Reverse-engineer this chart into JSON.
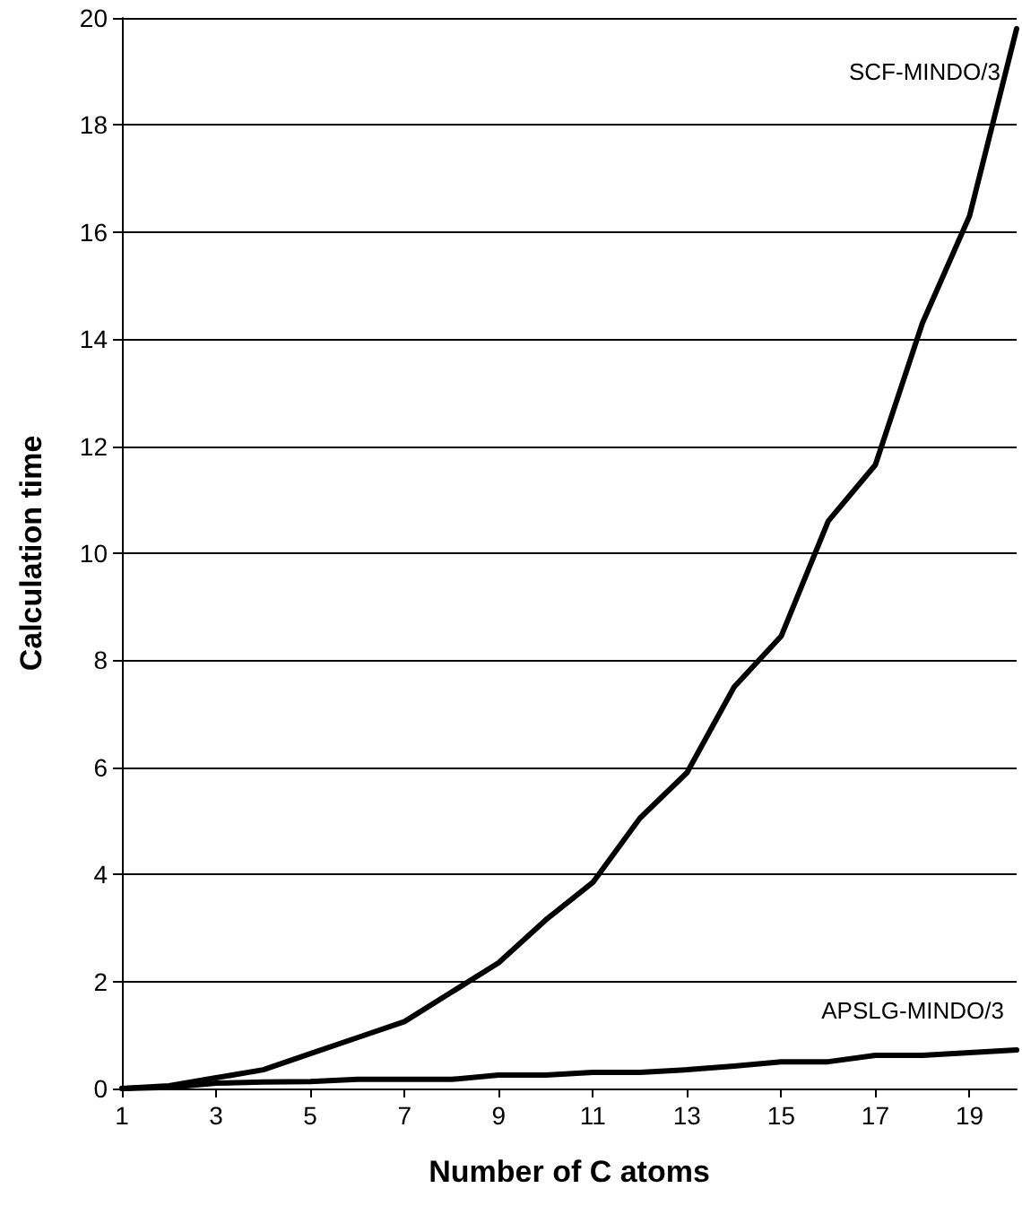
{
  "chart_data": {
    "type": "line",
    "xlabel": "Number of C atoms",
    "ylabel": "Calculation time",
    "x": [
      1,
      2,
      3,
      4,
      5,
      6,
      7,
      8,
      9,
      10,
      11,
      12,
      13,
      14,
      15,
      16,
      17,
      18,
      19,
      20
    ],
    "series": [
      {
        "name": "SCF-MINDO/3",
        "color": "#000000",
        "values": [
          0,
          0.05,
          0.2,
          0.35,
          0.65,
          0.95,
          1.25,
          1.8,
          2.35,
          3.15,
          3.85,
          5.05,
          5.9,
          7.5,
          8.45,
          10.6,
          11.65,
          14.3,
          16.3,
          19.8
        ]
      },
      {
        "name": "APSLG-MINDO/3",
        "color": "#000000",
        "values": [
          0,
          0.02,
          0.1,
          0.12,
          0.13,
          0.17,
          0.17,
          0.17,
          0.25,
          0.25,
          0.3,
          0.3,
          0.35,
          0.42,
          0.5,
          0.5,
          0.62,
          0.62,
          0.67,
          0.72
        ]
      }
    ],
    "xlim": [
      1,
      20
    ],
    "xticks": [
      1,
      3,
      5,
      7,
      9,
      11,
      13,
      15,
      17,
      19
    ],
    "ylim": [
      0,
      20
    ],
    "yticks": [
      0,
      2,
      4,
      6,
      8,
      10,
      12,
      14,
      16,
      18,
      20
    ],
    "grid": "y",
    "legend": false,
    "marker": "none",
    "line_style": "solid"
  }
}
